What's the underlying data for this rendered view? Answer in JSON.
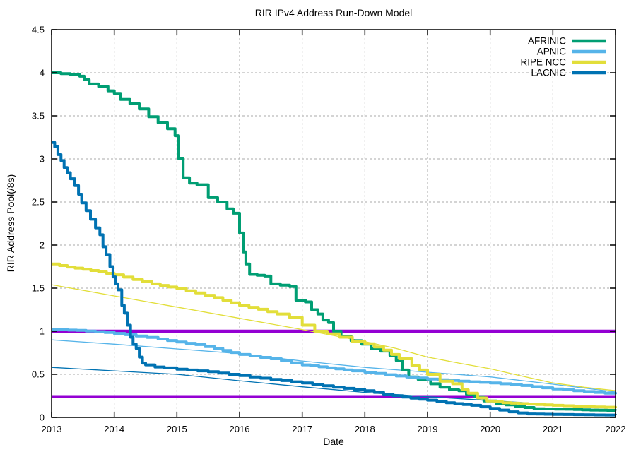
{
  "figure": {
    "title": "RIR IPv4 Address Run-Down Model",
    "xlabel": "Date",
    "ylabel": "RIR Address Pool(/8s)"
  },
  "chart_data": {
    "type": "line",
    "title": "RIR IPv4 Address Run-Down Model",
    "xlabel": "Date",
    "ylabel": "RIR Address Pool(/8s)",
    "xlim": [
      2013,
      2022
    ],
    "ylim": [
      0,
      4.5
    ],
    "x_ticks": [
      {
        "v": 2013,
        "label": "2013"
      },
      {
        "v": 2014,
        "label": "2014"
      },
      {
        "v": 2015,
        "label": "2015"
      },
      {
        "v": 2016,
        "label": "2016"
      },
      {
        "v": 2017,
        "label": "2017"
      },
      {
        "v": 2018,
        "label": "2018"
      },
      {
        "v": 2019,
        "label": "2019"
      },
      {
        "v": 2020,
        "label": "2020"
      },
      {
        "v": 2021,
        "label": "2021"
      },
      {
        "v": 2022,
        "label": "2022"
      }
    ],
    "y_ticks": [
      {
        "v": 0,
        "label": "0"
      },
      {
        "v": 0.5,
        "label": "0.5"
      },
      {
        "v": 1,
        "label": "1"
      },
      {
        "v": 1.5,
        "label": "1.5"
      },
      {
        "v": 2,
        "label": "2"
      },
      {
        "v": 2.5,
        "label": "2.5"
      },
      {
        "v": 3,
        "label": "3"
      },
      {
        "v": 3.5,
        "label": "3.5"
      },
      {
        "v": 4,
        "label": "4"
      },
      {
        "v": 4.5,
        "label": "4.5"
      }
    ],
    "grid": true,
    "grid_color": "#aaaaaa",
    "axis_color": "#000000",
    "background": "#ffffff",
    "legend_position": "top-right-inside",
    "legend": [
      "AFRINIC",
      "APNIC",
      "RIPE NCC",
      "LACNIC"
    ],
    "reference_lines": [
      {
        "name": "final-/8-threshold",
        "y": 1.0,
        "color": "#9400d3",
        "width": 4.5
      },
      {
        "name": "lower-threshold",
        "y": 0.24,
        "color": "#9400d3",
        "width": 4.5
      }
    ],
    "series": [
      {
        "name": "AFRINIC",
        "color": "#009e73",
        "width": 4,
        "style": "steps",
        "in_legend": true,
        "points": [
          [
            2013.0,
            4.0
          ],
          [
            2013.3,
            3.98
          ],
          [
            2013.45,
            3.96
          ],
          [
            2013.52,
            3.92
          ],
          [
            2013.6,
            3.87
          ],
          [
            2013.75,
            3.84
          ],
          [
            2013.9,
            3.79
          ],
          [
            2014.0,
            3.76
          ],
          [
            2014.1,
            3.69
          ],
          [
            2014.25,
            3.64
          ],
          [
            2014.4,
            3.58
          ],
          [
            2014.55,
            3.49
          ],
          [
            2014.7,
            3.42
          ],
          [
            2014.85,
            3.35
          ],
          [
            2014.97,
            3.27
          ],
          [
            2015.03,
            3.0
          ],
          [
            2015.1,
            2.78
          ],
          [
            2015.2,
            2.72
          ],
          [
            2015.32,
            2.7
          ],
          [
            2015.5,
            2.55
          ],
          [
            2015.65,
            2.5
          ],
          [
            2015.8,
            2.42
          ],
          [
            2015.9,
            2.37
          ],
          [
            2016.0,
            2.14
          ],
          [
            2016.06,
            1.92
          ],
          [
            2016.1,
            1.78
          ],
          [
            2016.16,
            1.66
          ],
          [
            2016.4,
            1.64
          ],
          [
            2016.5,
            1.55
          ],
          [
            2016.8,
            1.52
          ],
          [
            2016.9,
            1.36
          ],
          [
            2017.05,
            1.34
          ],
          [
            2017.15,
            1.25
          ],
          [
            2017.25,
            1.2
          ],
          [
            2017.33,
            1.13
          ],
          [
            2017.42,
            1.1
          ],
          [
            2017.5,
            1.0
          ],
          [
            2017.62,
            0.94
          ],
          [
            2017.78,
            0.89
          ],
          [
            2017.95,
            0.85
          ],
          [
            2018.1,
            0.8
          ],
          [
            2018.25,
            0.77
          ],
          [
            2018.4,
            0.72
          ],
          [
            2018.5,
            0.66
          ],
          [
            2018.6,
            0.55
          ],
          [
            2018.7,
            0.47
          ],
          [
            2018.85,
            0.44
          ],
          [
            2019.05,
            0.39
          ],
          [
            2019.2,
            0.35
          ],
          [
            2019.35,
            0.32
          ],
          [
            2019.5,
            0.31
          ],
          [
            2019.62,
            0.27
          ],
          [
            2019.75,
            0.24
          ],
          [
            2019.9,
            0.19
          ],
          [
            2020.1,
            0.16
          ],
          [
            2020.4,
            0.13
          ],
          [
            2020.7,
            0.1
          ],
          [
            2021.2,
            0.095
          ],
          [
            2021.6,
            0.085
          ],
          [
            2022.0,
            0.08
          ]
        ]
      },
      {
        "name": "APNIC",
        "color": "#56b4e9",
        "width": 4,
        "style": "steps",
        "in_legend": true,
        "points": [
          [
            2013.0,
            1.02
          ],
          [
            2013.4,
            1.01
          ],
          [
            2013.7,
            0.995
          ],
          [
            2014.0,
            0.975
          ],
          [
            2014.35,
            0.945
          ],
          [
            2014.7,
            0.91
          ],
          [
            2015.0,
            0.875
          ],
          [
            2015.3,
            0.845
          ],
          [
            2015.6,
            0.8
          ],
          [
            2016.0,
            0.73
          ],
          [
            2016.5,
            0.68
          ],
          [
            2017.0,
            0.61
          ],
          [
            2017.4,
            0.575
          ],
          [
            2017.8,
            0.54
          ],
          [
            2018.0,
            0.525
          ],
          [
            2018.5,
            0.48
          ],
          [
            2019.0,
            0.445
          ],
          [
            2019.5,
            0.42
          ],
          [
            2020.0,
            0.4
          ],
          [
            2020.5,
            0.37
          ],
          [
            2021.0,
            0.33
          ],
          [
            2021.5,
            0.3
          ],
          [
            2022.0,
            0.27
          ]
        ]
      },
      {
        "name": "RIPE NCC",
        "color": "#e2de3a",
        "width": 4,
        "style": "steps",
        "in_legend": true,
        "points": [
          [
            2013.0,
            1.78
          ],
          [
            2013.25,
            1.745
          ],
          [
            2013.5,
            1.72
          ],
          [
            2013.75,
            1.69
          ],
          [
            2014.0,
            1.655
          ],
          [
            2014.3,
            1.6
          ],
          [
            2014.6,
            1.55
          ],
          [
            2015.0,
            1.495
          ],
          [
            2015.3,
            1.445
          ],
          [
            2015.6,
            1.39
          ],
          [
            2016.0,
            1.3
          ],
          [
            2016.3,
            1.255
          ],
          [
            2016.6,
            1.2
          ],
          [
            2016.8,
            1.16
          ],
          [
            2017.0,
            1.07
          ],
          [
            2017.2,
            1.0
          ],
          [
            2017.4,
            0.97
          ],
          [
            2017.6,
            0.93
          ],
          [
            2017.8,
            0.88
          ],
          [
            2018.0,
            0.855
          ],
          [
            2018.3,
            0.78
          ],
          [
            2018.55,
            0.68
          ],
          [
            2018.75,
            0.6
          ],
          [
            2019.0,
            0.5
          ],
          [
            2019.2,
            0.42
          ],
          [
            2019.4,
            0.39
          ],
          [
            2019.55,
            0.32
          ],
          [
            2019.65,
            0.28
          ],
          [
            2019.8,
            0.225
          ],
          [
            2019.95,
            0.19
          ],
          [
            2020.2,
            0.17
          ],
          [
            2020.6,
            0.155
          ],
          [
            2021.0,
            0.14
          ],
          [
            2021.5,
            0.125
          ],
          [
            2022.0,
            0.115
          ]
        ]
      },
      {
        "name": "LACNIC",
        "color": "#0072b2",
        "width": 4,
        "style": "steps",
        "in_legend": true,
        "points": [
          [
            2013.0,
            3.19
          ],
          [
            2013.05,
            3.14
          ],
          [
            2013.1,
            3.05
          ],
          [
            2013.15,
            2.98
          ],
          [
            2013.2,
            2.9
          ],
          [
            2013.25,
            2.84
          ],
          [
            2013.3,
            2.77
          ],
          [
            2013.37,
            2.69
          ],
          [
            2013.43,
            2.59
          ],
          [
            2013.48,
            2.49
          ],
          [
            2013.55,
            2.4
          ],
          [
            2013.62,
            2.3
          ],
          [
            2013.7,
            2.2
          ],
          [
            2013.77,
            2.12
          ],
          [
            2013.82,
            1.98
          ],
          [
            2013.87,
            1.89
          ],
          [
            2013.93,
            1.75
          ],
          [
            2013.98,
            1.63
          ],
          [
            2014.02,
            1.55
          ],
          [
            2014.06,
            1.48
          ],
          [
            2014.12,
            1.3
          ],
          [
            2014.16,
            1.21
          ],
          [
            2014.21,
            1.07
          ],
          [
            2014.26,
            0.93
          ],
          [
            2014.3,
            0.85
          ],
          [
            2014.35,
            0.8
          ],
          [
            2014.4,
            0.7
          ],
          [
            2014.45,
            0.63
          ],
          [
            2014.5,
            0.61
          ],
          [
            2014.65,
            0.585
          ],
          [
            2014.8,
            0.575
          ],
          [
            2015.0,
            0.56
          ],
          [
            2015.5,
            0.53
          ],
          [
            2016.0,
            0.485
          ],
          [
            2016.5,
            0.44
          ],
          [
            2017.0,
            0.4
          ],
          [
            2017.5,
            0.35
          ],
          [
            2018.0,
            0.31
          ],
          [
            2018.3,
            0.27
          ],
          [
            2018.6,
            0.235
          ],
          [
            2019.0,
            0.2
          ],
          [
            2019.3,
            0.17
          ],
          [
            2019.7,
            0.14
          ],
          [
            2020.0,
            0.105
          ],
          [
            2020.3,
            0.065
          ],
          [
            2020.6,
            0.04
          ],
          [
            2021.0,
            0.035
          ],
          [
            2021.5,
            0.03
          ],
          [
            2022.0,
            0.027
          ]
        ]
      },
      {
        "name": "RIPE NCC projection",
        "color": "#e2de3a",
        "width": 1.3,
        "style": "line",
        "in_legend": false,
        "points": [
          [
            2013,
            1.54
          ],
          [
            2014,
            1.41
          ],
          [
            2015,
            1.28
          ],
          [
            2016,
            1.15
          ],
          [
            2017,
            1.02
          ],
          [
            2018,
            0.88
          ],
          [
            2018.5,
            0.8
          ],
          [
            2019,
            0.7
          ],
          [
            2019.5,
            0.63
          ],
          [
            2020,
            0.565
          ],
          [
            2020.5,
            0.48
          ],
          [
            2021,
            0.4
          ],
          [
            2021.5,
            0.35
          ],
          [
            2022,
            0.31
          ]
        ]
      },
      {
        "name": "APNIC projection",
        "color": "#56b4e9",
        "width": 1.3,
        "style": "line",
        "in_legend": false,
        "points": [
          [
            2013,
            0.9
          ],
          [
            2014,
            0.85
          ],
          [
            2015,
            0.795
          ],
          [
            2016,
            0.74
          ],
          [
            2017,
            0.655
          ],
          [
            2018,
            0.58
          ],
          [
            2019,
            0.525
          ],
          [
            2020,
            0.47
          ],
          [
            2021,
            0.385
          ],
          [
            2022,
            0.295
          ]
        ]
      },
      {
        "name": "LACNIC projection",
        "color": "#0072b2",
        "width": 1.3,
        "style": "line",
        "in_legend": false,
        "points": [
          [
            2013,
            0.58
          ],
          [
            2014,
            0.54
          ],
          [
            2015,
            0.5
          ],
          [
            2016,
            0.425
          ],
          [
            2017,
            0.355
          ],
          [
            2018,
            0.29
          ],
          [
            2019,
            0.24
          ],
          [
            2020,
            0.195
          ],
          [
            2021,
            0.15
          ],
          [
            2022,
            0.115
          ]
        ]
      }
    ]
  }
}
